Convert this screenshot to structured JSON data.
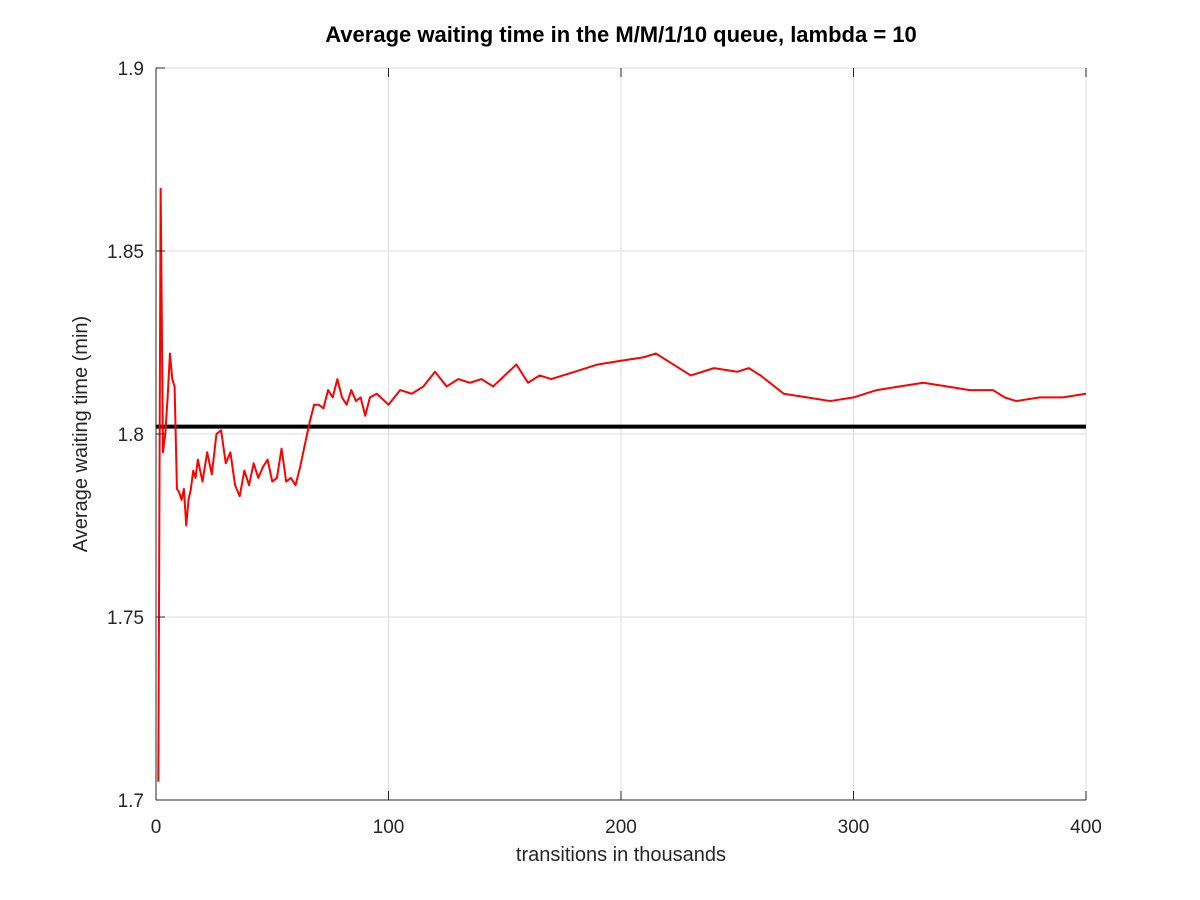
{
  "chart_data": {
    "type": "line",
    "title": "Average waiting time in the M/M/1/10 queue, lambda = 10",
    "xlabel": "transitions in thousands",
    "ylabel": "Average waiting time (min)",
    "xlim": [
      0,
      400
    ],
    "ylim": [
      1.7,
      1.9
    ],
    "xticks": [
      0,
      100,
      200,
      300,
      400
    ],
    "xtick_labels": [
      "0",
      "100",
      "200",
      "300",
      "400"
    ],
    "yticks": [
      1.7,
      1.75,
      1.8,
      1.85,
      1.9
    ],
    "ytick_labels": [
      "1.7",
      "1.75",
      "1.8",
      "1.85",
      "1.9"
    ],
    "grid": true,
    "series": [
      {
        "color": "#ff0000",
        "style": "solid",
        "x": [
          1,
          2,
          3,
          4,
          5,
          6,
          7,
          8,
          9,
          10,
          11,
          12,
          13,
          14,
          15,
          16,
          17,
          18,
          20,
          22,
          24,
          26,
          28,
          30,
          32,
          34,
          36,
          38,
          40,
          42,
          44,
          46,
          48,
          50,
          52,
          54,
          56,
          58,
          60,
          62,
          64,
          66,
          68,
          70,
          72,
          74,
          76,
          78,
          80,
          82,
          84,
          86,
          88,
          90,
          92,
          95,
          100,
          105,
          110,
          115,
          120,
          125,
          130,
          135,
          140,
          145,
          150,
          155,
          160,
          165,
          170,
          175,
          180,
          190,
          200,
          210,
          215,
          220,
          230,
          240,
          250,
          255,
          260,
          270,
          280,
          290,
          300,
          310,
          320,
          330,
          340,
          350,
          360,
          365,
          370,
          380,
          390,
          400
        ],
        "values": [
          1.705,
          1.867,
          1.795,
          1.8,
          1.81,
          1.822,
          1.815,
          1.813,
          1.785,
          1.784,
          1.782,
          1.785,
          1.775,
          1.782,
          1.785,
          1.79,
          1.788,
          1.793,
          1.787,
          1.795,
          1.789,
          1.8,
          1.801,
          1.792,
          1.795,
          1.786,
          1.783,
          1.79,
          1.786,
          1.792,
          1.788,
          1.791,
          1.793,
          1.787,
          1.788,
          1.796,
          1.787,
          1.788,
          1.786,
          1.791,
          1.797,
          1.803,
          1.808,
          1.808,
          1.807,
          1.812,
          1.81,
          1.815,
          1.81,
          1.808,
          1.812,
          1.809,
          1.81,
          1.805,
          1.81,
          1.811,
          1.808,
          1.812,
          1.811,
          1.813,
          1.817,
          1.813,
          1.815,
          1.814,
          1.815,
          1.813,
          1.816,
          1.819,
          1.814,
          1.816,
          1.815,
          1.816,
          1.817,
          1.819,
          1.82,
          1.821,
          1.822,
          1.82,
          1.816,
          1.818,
          1.817,
          1.818,
          1.816,
          1.811,
          1.81,
          1.809,
          1.81,
          1.812,
          1.813,
          1.814,
          1.813,
          1.812,
          1.812,
          1.81,
          1.809,
          1.81,
          1.81,
          1.811
        ]
      },
      {
        "color": "#000000",
        "style": "solid",
        "x": [
          0,
          400
        ],
        "values": [
          1.802,
          1.802
        ]
      }
    ]
  }
}
